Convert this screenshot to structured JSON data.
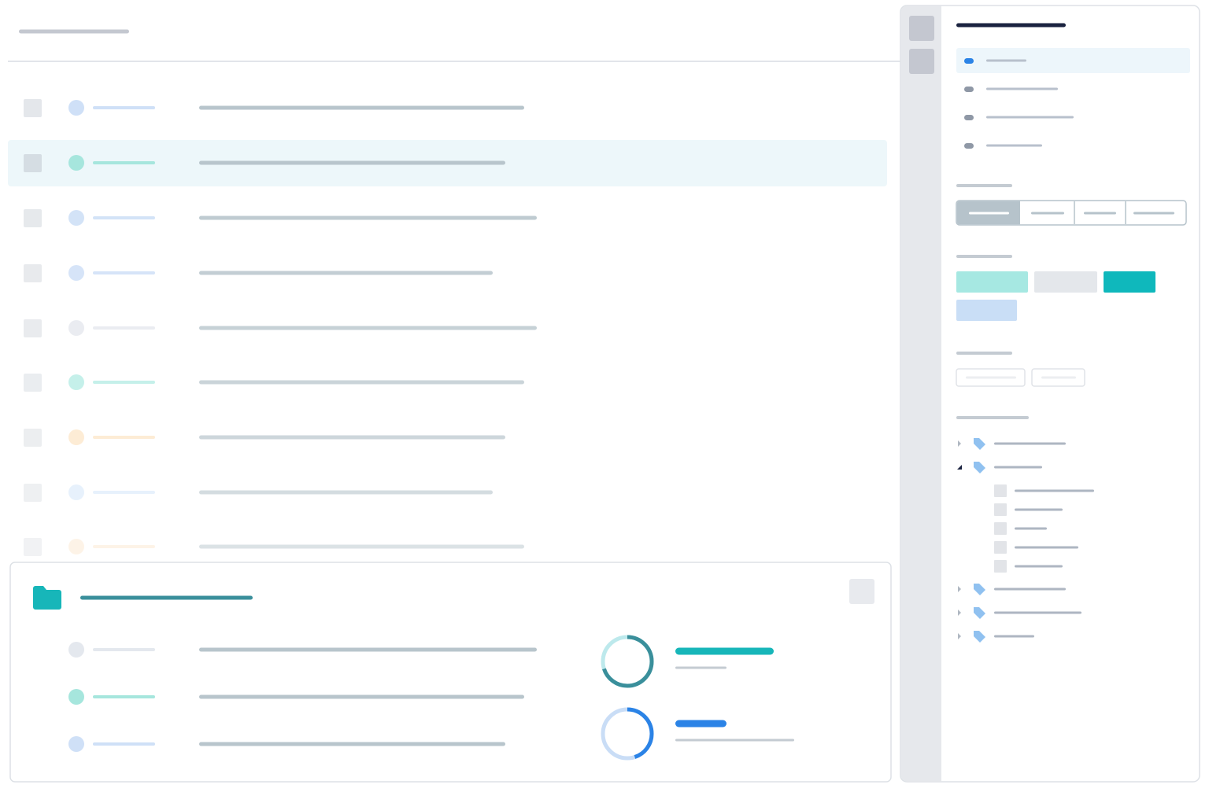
{
  "rings": [
    {
      "progress": 70
    },
    {
      "progress": 45
    }
  ]
}
